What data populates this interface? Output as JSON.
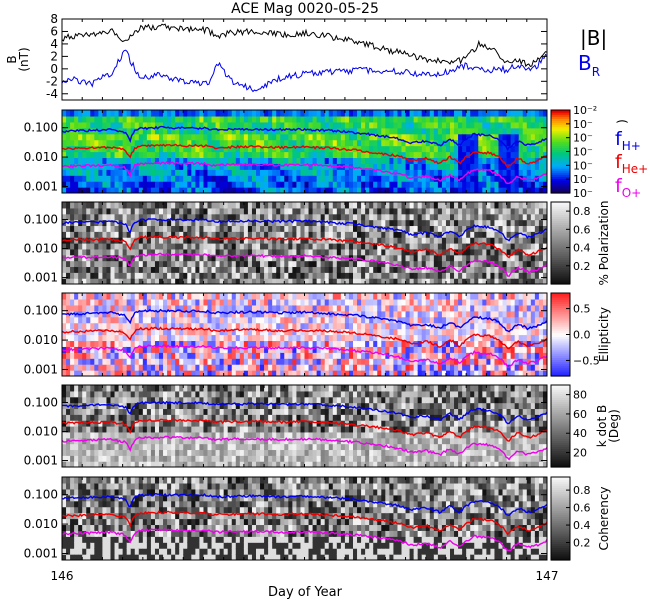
{
  "chart_data": {
    "title": "ACE Mag 0020-05-25",
    "xlabel": "Day of Year",
    "xlim": [
      146,
      147
    ],
    "x_ticks": [
      "146",
      "147"
    ],
    "panels": [
      {
        "id": "mag",
        "type": "line",
        "ylabel_lines": [
          "B",
          "(nT)"
        ],
        "ylim": [
          -5,
          8
        ],
        "y_ticks": [
          "-4",
          "-2",
          "0",
          "2",
          "4",
          "6",
          "8"
        ],
        "y_tick_values": [
          -4,
          -2,
          0,
          2,
          4,
          6,
          8
        ],
        "series": [
          {
            "name": "|B|",
            "color": "#000000",
            "x": [
              146.0,
              146.02,
              146.04,
              146.06,
              146.08,
              146.1,
              146.13,
              146.16,
              146.2,
              146.25,
              146.3,
              146.32,
              146.35,
              146.4,
              146.45,
              146.5,
              146.55,
              146.6,
              146.65,
              146.7,
              146.75,
              146.8,
              146.83,
              146.86,
              146.88,
              146.9,
              146.92,
              146.94,
              146.96,
              146.98,
              147.0
            ],
            "y": [
              4.8,
              5.2,
              5.6,
              5.2,
              5.8,
              6.2,
              4.5,
              6.5,
              6.8,
              6.5,
              6.2,
              5.2,
              5.8,
              6.0,
              5.5,
              5.8,
              5.2,
              4.5,
              3.5,
              2.5,
              1.5,
              1.0,
              1.5,
              4.0,
              3.5,
              2.5,
              0.8,
              1.5,
              0.5,
              1.2,
              3.0
            ]
          },
          {
            "name": "B",
            "subscript": "R",
            "color": "#0000ee",
            "x": [
              146.0,
              146.02,
              146.04,
              146.06,
              146.08,
              146.1,
              146.13,
              146.16,
              146.2,
              146.25,
              146.3,
              146.32,
              146.35,
              146.4,
              146.45,
              146.5,
              146.55,
              146.6,
              146.65,
              146.7,
              146.75,
              146.8,
              146.83,
              146.86,
              146.88,
              146.9,
              146.92,
              146.94,
              146.96,
              146.98,
              147.0
            ],
            "y": [
              -2.5,
              -1.5,
              -2.0,
              -2.5,
              -1.5,
              -1.0,
              3.0,
              -1.5,
              -1.0,
              -2.0,
              -2.5,
              1.0,
              -2.0,
              -3.5,
              -1.5,
              -0.8,
              -0.5,
              -0.3,
              -0.2,
              -0.5,
              -1.0,
              -0.5,
              0.5,
              0.2,
              -0.3,
              0.0,
              -0.2,
              0.8,
              -0.2,
              0.5,
              2.5
            ]
          }
        ]
      },
      {
        "id": "power",
        "type": "heatmap",
        "colormap": "rainbow",
        "ylim_log": [
          0.0006,
          0.4
        ],
        "y_ticks": [
          "0.001",
          "0.010",
          "0.100"
        ],
        "y_tick_values": [
          0.001,
          0.01,
          0.1
        ],
        "colorbar_label": ")",
        "colorbar_ticks": [
          "10⁻²",
          "10⁻",
          "10⁻",
          "10⁻",
          "10⁻",
          "10⁻",
          "10⁻"
        ]
      },
      {
        "id": "polarization",
        "type": "heatmap",
        "colormap": "gray",
        "ylim_log": [
          0.0006,
          0.4
        ],
        "y_ticks": [
          "0.001",
          "0.010",
          "0.100"
        ],
        "y_tick_values": [
          0.001,
          0.01,
          0.1
        ],
        "colorbar_label": "% Polarization",
        "colorbar_ticks": [
          "0.2",
          "0.4",
          "0.6",
          "0.8"
        ],
        "colorbar_range": [
          0,
          0.9
        ]
      },
      {
        "id": "ellipticity",
        "type": "heatmap",
        "colormap": "bwr",
        "ylim_log": [
          0.0006,
          0.4
        ],
        "y_ticks": [
          "0.001",
          "0.010",
          "0.100"
        ],
        "y_tick_values": [
          0.001,
          0.01,
          0.1
        ],
        "colorbar_label": "Ellipticity",
        "colorbar_ticks": [
          "−0.5",
          "0.0",
          "0.5"
        ],
        "colorbar_range": [
          -0.8,
          0.8
        ]
      },
      {
        "id": "kdotb",
        "type": "heatmap",
        "colormap": "gray",
        "ylim_log": [
          0.0006,
          0.4
        ],
        "y_ticks": [
          "0.001",
          "0.010",
          "0.100"
        ],
        "y_tick_values": [
          0.001,
          0.01,
          0.1
        ],
        "colorbar_label_lines": [
          "k dot B",
          "(Deg)"
        ],
        "colorbar_ticks": [
          "20",
          "40",
          "60",
          "80"
        ],
        "colorbar_range": [
          5,
          90
        ]
      },
      {
        "id": "coherency",
        "type": "heatmap",
        "colormap": "gray",
        "ylim_log": [
          0.0006,
          0.4
        ],
        "y_ticks": [
          "0.001",
          "0.010",
          "0.100"
        ],
        "y_tick_values": [
          0.001,
          0.01,
          0.1
        ],
        "colorbar_label": "Coherency",
        "colorbar_ticks": [
          "0.2",
          "0.4",
          "0.6",
          "0.8"
        ],
        "colorbar_range": [
          0,
          0.95
        ]
      }
    ],
    "gyro_lines": [
      {
        "name": "f",
        "subscript": "H+",
        "color": "#0000ee",
        "x": [
          146.0,
          146.05,
          146.1,
          146.13,
          146.14,
          146.15,
          146.16,
          146.2,
          146.3,
          146.31,
          146.35,
          146.4,
          146.45,
          146.5,
          146.55,
          146.6,
          146.65,
          146.7,
          146.72,
          146.75,
          146.78,
          146.8,
          146.82,
          146.85,
          146.88,
          146.9,
          146.92,
          146.94,
          146.96,
          146.98,
          147.0
        ],
        "y": [
          0.075,
          0.08,
          0.085,
          0.07,
          0.035,
          0.08,
          0.095,
          0.1,
          0.095,
          0.085,
          0.088,
          0.09,
          0.085,
          0.088,
          0.08,
          0.07,
          0.055,
          0.04,
          0.03,
          0.035,
          0.025,
          0.04,
          0.025,
          0.06,
          0.055,
          0.04,
          0.018,
          0.035,
          0.025,
          0.03,
          0.045
        ]
      },
      {
        "name": "f",
        "subscript": "He+",
        "color": "#ee0000",
        "x": [
          146.0,
          146.05,
          146.1,
          146.13,
          146.14,
          146.15,
          146.16,
          146.2,
          146.3,
          146.31,
          146.35,
          146.4,
          146.45,
          146.5,
          146.55,
          146.6,
          146.65,
          146.7,
          146.72,
          146.75,
          146.78,
          146.8,
          146.82,
          146.85,
          146.88,
          146.9,
          146.92,
          146.94,
          146.96,
          146.98,
          147.0
        ],
        "y": [
          0.019,
          0.02,
          0.021,
          0.0175,
          0.009,
          0.02,
          0.024,
          0.025,
          0.024,
          0.021,
          0.022,
          0.0225,
          0.021,
          0.022,
          0.02,
          0.0175,
          0.014,
          0.01,
          0.0075,
          0.009,
          0.006,
          0.01,
          0.006,
          0.015,
          0.014,
          0.01,
          0.0045,
          0.009,
          0.006,
          0.0075,
          0.011
        ]
      },
      {
        "name": "f",
        "subscript": "O+",
        "color": "#ee00ee",
        "x": [
          146.0,
          146.05,
          146.1,
          146.13,
          146.14,
          146.15,
          146.16,
          146.2,
          146.3,
          146.31,
          146.35,
          146.4,
          146.45,
          146.5,
          146.55,
          146.6,
          146.65,
          146.7,
          146.72,
          146.75,
          146.78,
          146.8,
          146.82,
          146.85,
          146.88,
          146.9,
          146.92,
          146.94,
          146.96,
          146.98,
          147.0
        ],
        "y": [
          0.0047,
          0.005,
          0.0053,
          0.0044,
          0.0022,
          0.005,
          0.006,
          0.0063,
          0.006,
          0.0053,
          0.0055,
          0.0056,
          0.0053,
          0.0055,
          0.005,
          0.0044,
          0.0035,
          0.0025,
          0.0019,
          0.0022,
          0.0016,
          0.0025,
          0.0016,
          0.0038,
          0.0035,
          0.0025,
          0.0011,
          0.0022,
          0.0016,
          0.0019,
          0.0028
        ]
      }
    ]
  }
}
